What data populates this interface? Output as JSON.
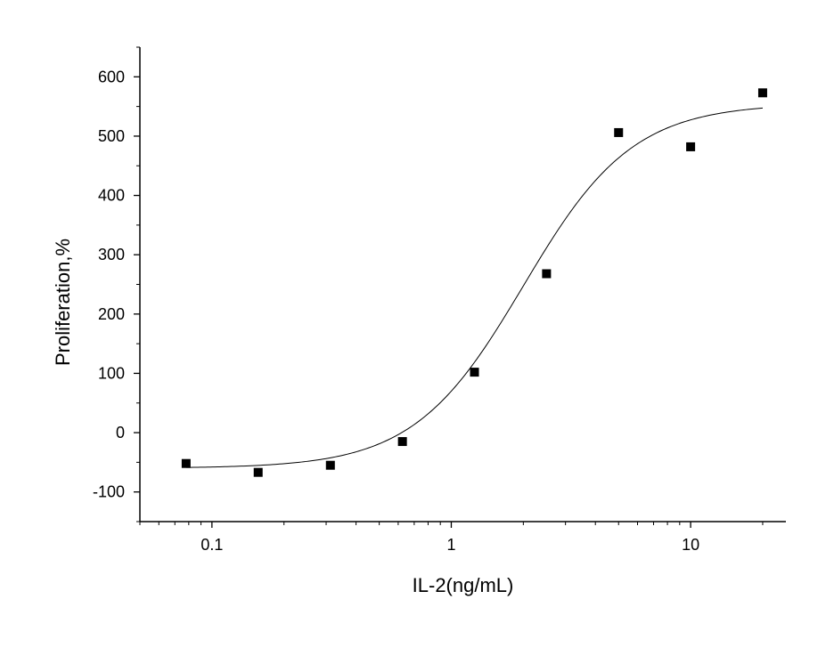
{
  "chart_data": {
    "type": "scatter",
    "title": "",
    "xlabel": "IL-2(ng/mL)",
    "ylabel": "Proliferation,%",
    "x_scale": "log",
    "xlim": [
      0.05,
      25
    ],
    "ylim": [
      -150,
      650
    ],
    "x_ticks": [
      {
        "value": 0.1,
        "label": "0.1"
      },
      {
        "value": 1,
        "label": "1"
      },
      {
        "value": 10,
        "label": "10"
      }
    ],
    "y_ticks": [
      {
        "value": -100,
        "label": "-100"
      },
      {
        "value": 0,
        "label": "0"
      },
      {
        "value": 100,
        "label": "100"
      },
      {
        "value": 200,
        "label": "200"
      },
      {
        "value": 300,
        "label": "300"
      },
      {
        "value": 400,
        "label": "400"
      },
      {
        "value": 500,
        "label": "500"
      },
      {
        "value": 600,
        "label": "600"
      }
    ],
    "grid": false,
    "legend": "none",
    "marker": "square",
    "color": "#000000",
    "series": [
      {
        "x": [
          0.078,
          0.156,
          0.3125,
          0.625,
          1.25,
          2.5,
          5,
          10,
          20
        ],
        "y": [
          -52,
          -67,
          -55,
          -15,
          102,
          268,
          506,
          482,
          573
        ]
      }
    ],
    "fit": {
      "model": "logistic",
      "x_range": [
        0.078,
        20
      ],
      "bottom": -60,
      "top": 555,
      "x0": 2.0,
      "slope": 1.9
    }
  }
}
